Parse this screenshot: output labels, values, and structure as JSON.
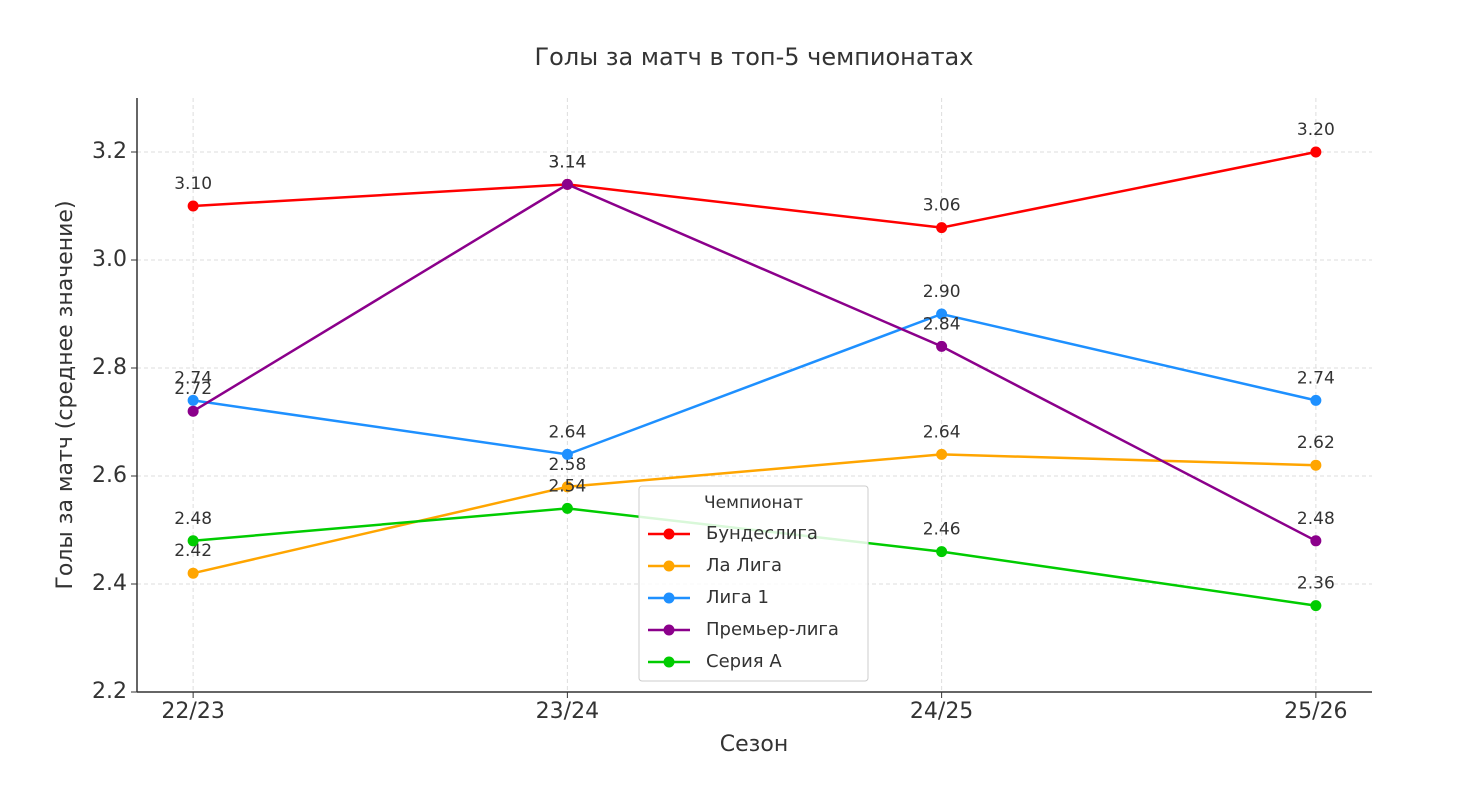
{
  "chart_data": {
    "type": "line",
    "title": "Голы за матч в топ-5 чемпионатах",
    "x_label": "Сезон",
    "y_label": "Голы за матч (среднее значение)",
    "categories": [
      "22/23",
      "23/24",
      "24/25",
      "25/26"
    ],
    "ylim": [
      2.2,
      3.3
    ],
    "yticks": [
      2.2,
      2.4,
      2.6,
      2.8,
      {
        "value": 3,
        "label": "3.0"
      },
      3.2
    ],
    "grid": true,
    "legend_title": "Чемпионат",
    "legend_position": "lower center",
    "series": [
      {
        "name": "Бундеслига",
        "color": "#ff0000",
        "values": [
          3.1,
          3.14,
          3.06,
          3.2
        ],
        "value_labels": [
          "3.10",
          "3.14",
          "3.06",
          "3.20"
        ]
      },
      {
        "name": "Ла Лига",
        "color": "#ffa500",
        "values": [
          2.42,
          2.58,
          2.64,
          2.62
        ],
        "value_labels": [
          "2.42",
          "2.58",
          "2.64",
          "2.62"
        ]
      },
      {
        "name": "Лига 1",
        "color": "#1e90ff",
        "values": [
          2.74,
          2.64,
          2.9,
          2.74
        ],
        "value_labels": [
          "2.74",
          "2.64",
          "2.90",
          "2.74"
        ]
      },
      {
        "name": "Премьер-лига",
        "color": "#8b008b",
        "values": [
          2.72,
          3.14,
          2.84,
          2.48
        ],
        "value_labels": [
          "2.72",
          "3.14",
          "2.84",
          "2.48"
        ]
      },
      {
        "name": "Серия А",
        "color": "#00cc00",
        "values": [
          2.48,
          2.54,
          2.46,
          2.36
        ],
        "value_labels": [
          "2.48",
          "2.54",
          "2.46",
          "2.36"
        ]
      }
    ]
  }
}
